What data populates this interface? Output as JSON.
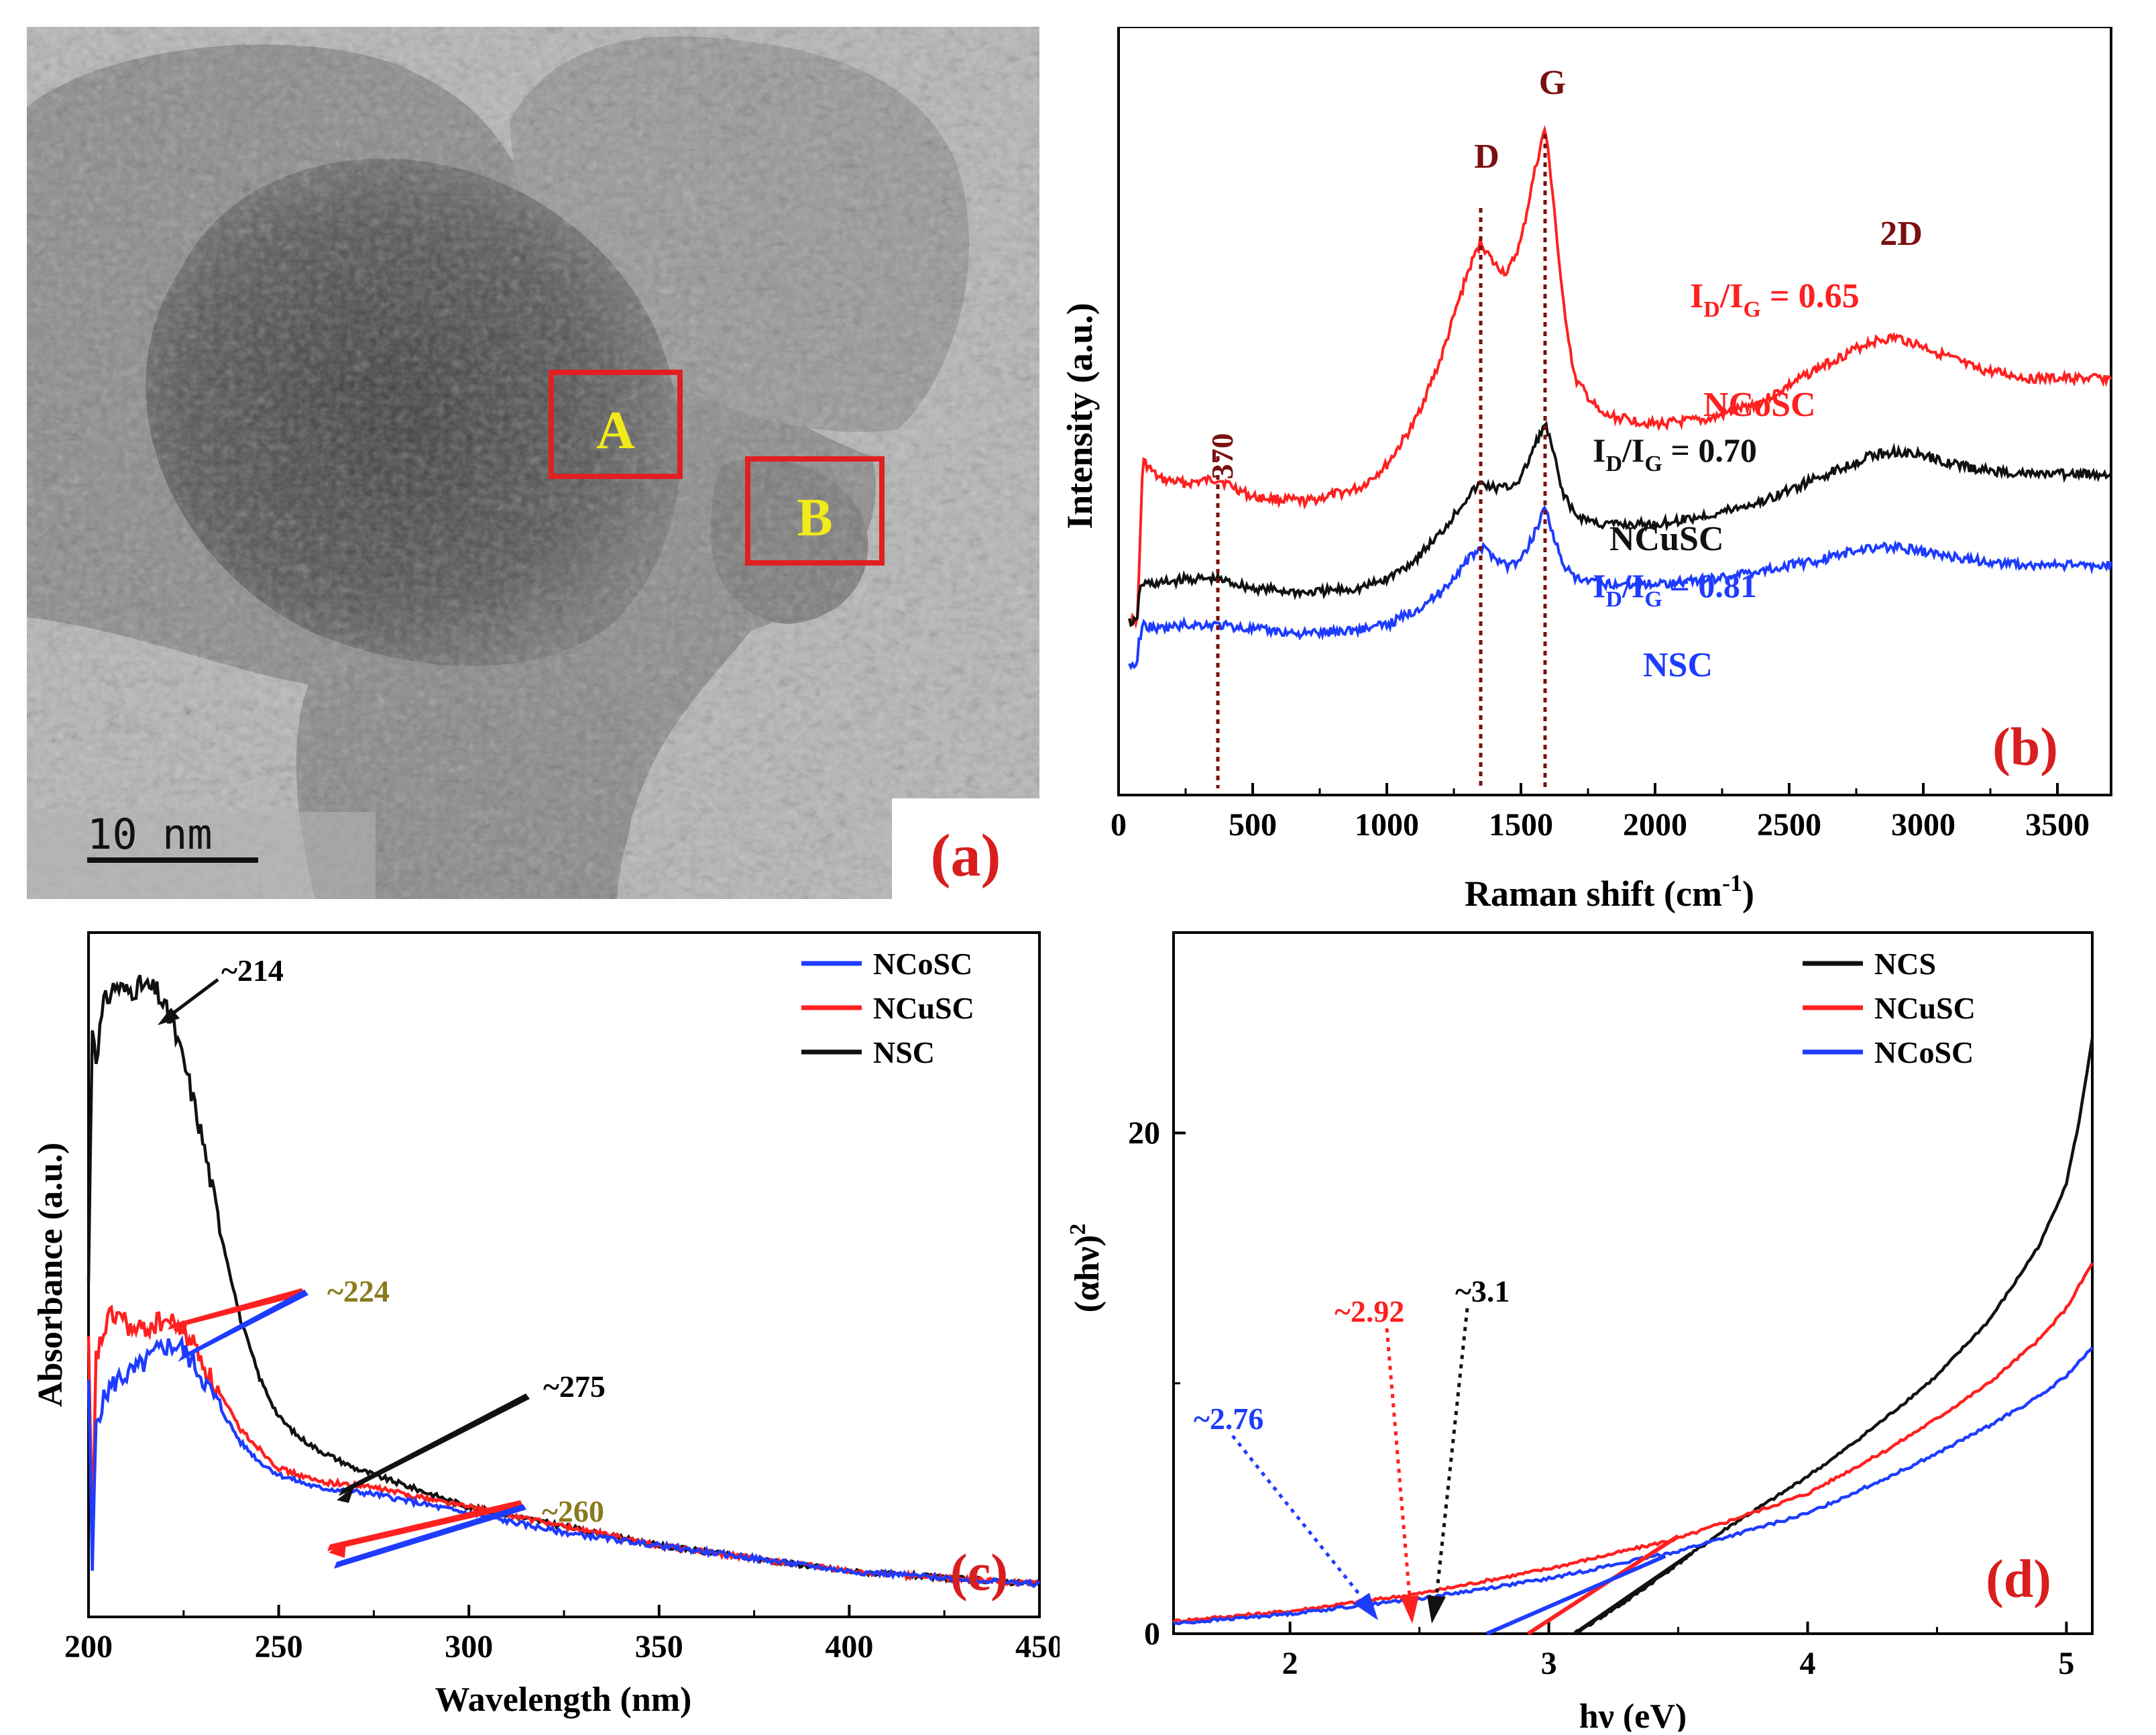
{
  "panels": {
    "a": {
      "label": "(a)",
      "scale_bar": "10 nm",
      "regions": [
        "A",
        "B"
      ],
      "colors": {
        "box": "#e02020",
        "region_text": "#f2ea1a",
        "panel_label": "#d81e1e"
      }
    },
    "b": {
      "label": "(b)",
      "peaks": {
        "p370": "370",
        "D": "D",
        "G": "G",
        "twoD": "2D"
      },
      "ratios": {
        "NCoSC": {
          "prefix": "I",
          "sub1": "D",
          "slash": "/I",
          "sub2": "G",
          "value": " = 0.65"
        },
        "NCuSC": {
          "prefix": "I",
          "sub1": "D",
          "slash": "/I",
          "sub2": "G",
          "value": " = 0.70"
        },
        "NSC": {
          "prefix": "I",
          "sub1": "D",
          "slash": "/I",
          "sub2": "G",
          "value": " = 0.81"
        }
      },
      "names": {
        "NCoSC": "NCoSC",
        "NCuSC": "NCuSC",
        "NSC": "NSC"
      }
    },
    "c": {
      "label": "(c)",
      "annotations": {
        "a214": "~214",
        "a224": "~224",
        "a275": "~275",
        "a260": "~260"
      }
    },
    "d": {
      "label": "(d)",
      "annotations": {
        "a31": "~3.1",
        "a292": "~2.92",
        "a276": "~2.76"
      }
    }
  },
  "chart_data": [
    {
      "panel": "b",
      "type": "line",
      "xlabel": "Raman shift (cm-1)",
      "ylabel": "Intensity (a.u.)",
      "xlim": [
        0,
        3700
      ],
      "xticks": [
        0,
        500,
        1000,
        1500,
        2000,
        2500,
        3000,
        3500
      ],
      "yticks_shown": false,
      "peak_markers": [
        370,
        1350,
        1590
      ],
      "series": [
        {
          "name": "NCoSC",
          "color": "#ff2020",
          "x": [
            75,
            90,
            150,
            250,
            370,
            500,
            700,
            900,
            1000,
            1100,
            1200,
            1300,
            1350,
            1400,
            1450,
            1500,
            1550,
            1590,
            1620,
            1650,
            1700,
            1800,
            2000,
            2200,
            2400,
            2600,
            2800,
            2900,
            3000,
            3200,
            3400,
            3700
          ],
          "y": [
            0.25,
            0.52,
            0.48,
            0.47,
            0.48,
            0.44,
            0.43,
            0.46,
            0.51,
            0.6,
            0.74,
            0.93,
            1.0,
            0.95,
            0.93,
            1.0,
            1.15,
            1.25,
            1.1,
            0.9,
            0.7,
            0.62,
            0.6,
            0.61,
            0.65,
            0.72,
            0.78,
            0.79,
            0.77,
            0.72,
            0.7,
            0.7
          ]
        },
        {
          "name": "NCuSC",
          "color": "#111111",
          "x": [
            75,
            90,
            150,
            250,
            370,
            500,
            700,
            900,
            1000,
            1100,
            1200,
            1300,
            1350,
            1400,
            1450,
            1500,
            1550,
            1590,
            1620,
            1650,
            1700,
            1800,
            2000,
            2200,
            2400,
            2600,
            2800,
            2900,
            3000,
            3200,
            3400,
            3700
          ],
          "y": [
            0.23,
            0.25,
            0.25,
            0.26,
            0.26,
            0.24,
            0.23,
            0.24,
            0.26,
            0.3,
            0.36,
            0.44,
            0.47,
            0.46,
            0.46,
            0.48,
            0.55,
            0.6,
            0.54,
            0.46,
            0.4,
            0.38,
            0.38,
            0.4,
            0.43,
            0.48,
            0.53,
            0.54,
            0.53,
            0.5,
            0.49,
            0.49
          ]
        },
        {
          "name": "NSC",
          "color": "#1e3cff",
          "x": [
            75,
            90,
            150,
            250,
            370,
            500,
            700,
            900,
            1000,
            1100,
            1200,
            1300,
            1350,
            1400,
            1450,
            1500,
            1550,
            1590,
            1620,
            1650,
            1700,
            1800,
            2000,
            2200,
            2400,
            2600,
            2800,
            2900,
            3000,
            3200,
            3400,
            3700
          ],
          "y": [
            0.12,
            0.16,
            0.15,
            0.16,
            0.16,
            0.15,
            0.14,
            0.15,
            0.16,
            0.19,
            0.23,
            0.3,
            0.33,
            0.31,
            0.29,
            0.3,
            0.36,
            0.42,
            0.36,
            0.3,
            0.26,
            0.25,
            0.25,
            0.26,
            0.28,
            0.3,
            0.33,
            0.33,
            0.32,
            0.3,
            0.29,
            0.29
          ]
        }
      ]
    },
    {
      "panel": "c",
      "type": "line",
      "xlabel": "Wavelength (nm)",
      "ylabel": "Absorbance (a.u.)",
      "xlim": [
        200,
        450
      ],
      "xticks": [
        200,
        250,
        300,
        350,
        400,
        450
      ],
      "yticks_shown": false,
      "legend": "top-right",
      "series": [
        {
          "name": "NCoSC",
          "color": "#1e3cff",
          "x": [
            200,
            201,
            202,
            203,
            205,
            208,
            212,
            216,
            220,
            224,
            228,
            232,
            236,
            240,
            245,
            250,
            260,
            275,
            300,
            325,
            350,
            375,
            400,
            425,
            450
          ],
          "y": [
            0.35,
            0.05,
            0.28,
            0.3,
            0.33,
            0.35,
            0.36,
            0.38,
            0.4,
            0.4,
            0.37,
            0.33,
            0.29,
            0.25,
            0.22,
            0.2,
            0.18,
            0.17,
            0.14,
            0.11,
            0.09,
            0.07,
            0.05,
            0.04,
            0.03
          ]
        },
        {
          "name": "NCuSC",
          "color": "#ff2020",
          "x": [
            200,
            201,
            202,
            203,
            205,
            208,
            212,
            216,
            220,
            224,
            228,
            232,
            236,
            240,
            245,
            250,
            260,
            275,
            300,
            325,
            350,
            375,
            400,
            425,
            450
          ],
          "y": [
            0.4,
            0.1,
            0.38,
            0.4,
            0.44,
            0.45,
            0.42,
            0.43,
            0.44,
            0.43,
            0.4,
            0.35,
            0.31,
            0.27,
            0.24,
            0.21,
            0.19,
            0.18,
            0.15,
            0.12,
            0.09,
            0.07,
            0.05,
            0.04,
            0.03
          ]
        },
        {
          "name": "NSC",
          "color": "#111111",
          "x": [
            200,
            201,
            202,
            204,
            207,
            210,
            214,
            218,
            222,
            226,
            230,
            235,
            240,
            245,
            250,
            255,
            260,
            270,
            280,
            300,
            325,
            350,
            375,
            400,
            425,
            450
          ],
          "y": [
            0.5,
            0.9,
            0.85,
            0.93,
            0.96,
            0.95,
            0.96,
            0.95,
            0.9,
            0.82,
            0.72,
            0.57,
            0.44,
            0.35,
            0.29,
            0.26,
            0.24,
            0.21,
            0.19,
            0.15,
            0.12,
            0.09,
            0.07,
            0.05,
            0.04,
            0.03
          ]
        }
      ],
      "peak_annotations_nm": [
        214,
        224,
        275,
        260
      ]
    },
    {
      "panel": "d",
      "type": "line",
      "xlabel": "hν (eV)",
      "ylabel": "(αhν)2",
      "xlim": [
        1.55,
        5.1
      ],
      "ylim": [
        0,
        28
      ],
      "xticks": [
        2,
        3,
        4,
        5
      ],
      "yticks": [
        0,
        20
      ],
      "legend": "top-right",
      "series": [
        {
          "name": "NCS",
          "color": "#111111",
          "x": [
            3.1,
            3.3,
            3.5,
            3.7,
            3.9,
            4.1,
            4.3,
            4.5,
            4.7,
            4.8,
            4.9,
            5.0,
            5.05,
            5.1
          ],
          "y": [
            0.0,
            1.3,
            2.8,
            4.3,
            5.6,
            7.0,
            8.6,
            10.3,
            12.5,
            14.0,
            15.6,
            18.0,
            20.5,
            23.8
          ]
        },
        {
          "name": "NCuSC",
          "color": "#ff2020",
          "x": [
            1.55,
            2.0,
            2.5,
            3.0,
            3.5,
            4.0,
            4.3,
            4.5,
            4.7,
            4.9,
            5.0,
            5.1
          ],
          "y": [
            0.5,
            0.9,
            1.6,
            2.6,
            3.8,
            5.6,
            7.3,
            8.6,
            10.0,
            11.8,
            13.0,
            14.8
          ]
        },
        {
          "name": "NCoSC",
          "color": "#1e3cff",
          "x": [
            1.55,
            2.0,
            2.5,
            3.0,
            3.5,
            4.0,
            4.3,
            4.5,
            4.7,
            4.9,
            5.0,
            5.1
          ],
          "y": [
            0.4,
            0.8,
            1.4,
            2.2,
            3.3,
            4.8,
            6.2,
            7.2,
            8.3,
            9.5,
            10.3,
            11.4
          ]
        }
      ],
      "band_gaps_eV": [
        3.1,
        2.92,
        2.76
      ]
    }
  ]
}
